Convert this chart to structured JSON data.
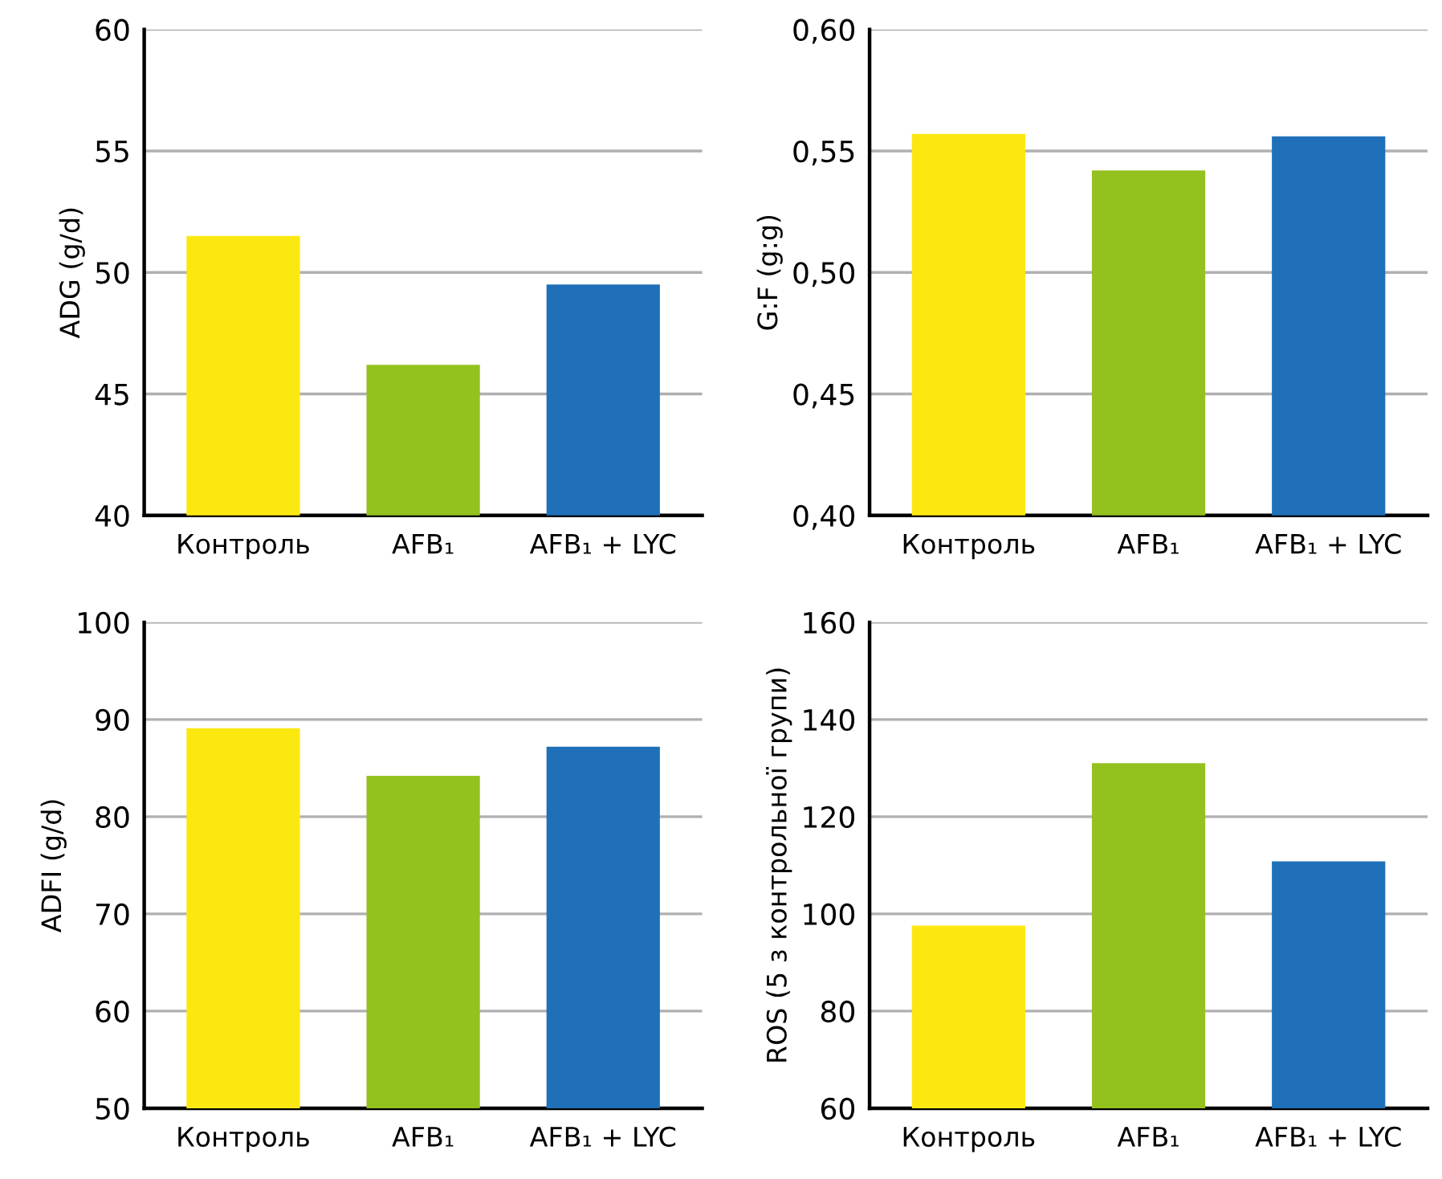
{
  "chart_data": [
    {
      "type": "bar",
      "ylabel": "ADG (g/d)",
      "categories": [
        "Контроль",
        "AFB₁",
        "AFB₁ + LYC"
      ],
      "values": [
        51.5,
        46.2,
        49.5
      ],
      "colors": [
        "#fce811",
        "#95c11f",
        "#1f70b8"
      ],
      "ylim": [
        40,
        60
      ],
      "yticks": [
        40,
        45,
        50,
        55,
        60
      ],
      "grid": "y",
      "legend": false
    },
    {
      "type": "bar",
      "ylabel": "G:F (g:g)",
      "categories": [
        "Контроль",
        "AFB₁",
        "AFB₁ + LYC"
      ],
      "values": [
        0.557,
        0.542,
        0.556
      ],
      "colors": [
        "#fce811",
        "#95c11f",
        "#1f70b8"
      ],
      "ylim": [
        0.4,
        0.6
      ],
      "yticks": [
        {
          "value": 0.4,
          "label": "0,40"
        },
        {
          "value": 0.45,
          "label": "0,45"
        },
        {
          "value": 0.5,
          "label": "0,50"
        },
        {
          "value": 0.55,
          "label": "0,55"
        },
        {
          "value": 0.6,
          "label": "0,60"
        }
      ],
      "grid": "y",
      "legend": false
    },
    {
      "type": "bar",
      "ylabel": "ADFI (g/d)",
      "categories": [
        "Контроль",
        "AFB₁",
        "AFB₁ + LYC"
      ],
      "values": [
        89.1,
        84.2,
        87.2
      ],
      "colors": [
        "#fce811",
        "#95c11f",
        "#1f70b8"
      ],
      "ylim": [
        50,
        100
      ],
      "yticks": [
        50,
        60,
        70,
        80,
        90,
        100
      ],
      "grid": "y",
      "legend": false
    },
    {
      "type": "bar",
      "ylabel": "ROS (5 з контрольної групи)",
      "categories": [
        "Контроль",
        "AFB₁",
        "AFB₁ + LYC"
      ],
      "values": [
        97.6,
        131,
        110.8
      ],
      "colors": [
        "#fce811",
        "#95c11f",
        "#1f70b8"
      ],
      "ylim": [
        60,
        160
      ],
      "yticks": [
        60,
        80,
        100,
        120,
        140,
        160
      ],
      "grid": "y",
      "legend": false
    }
  ]
}
